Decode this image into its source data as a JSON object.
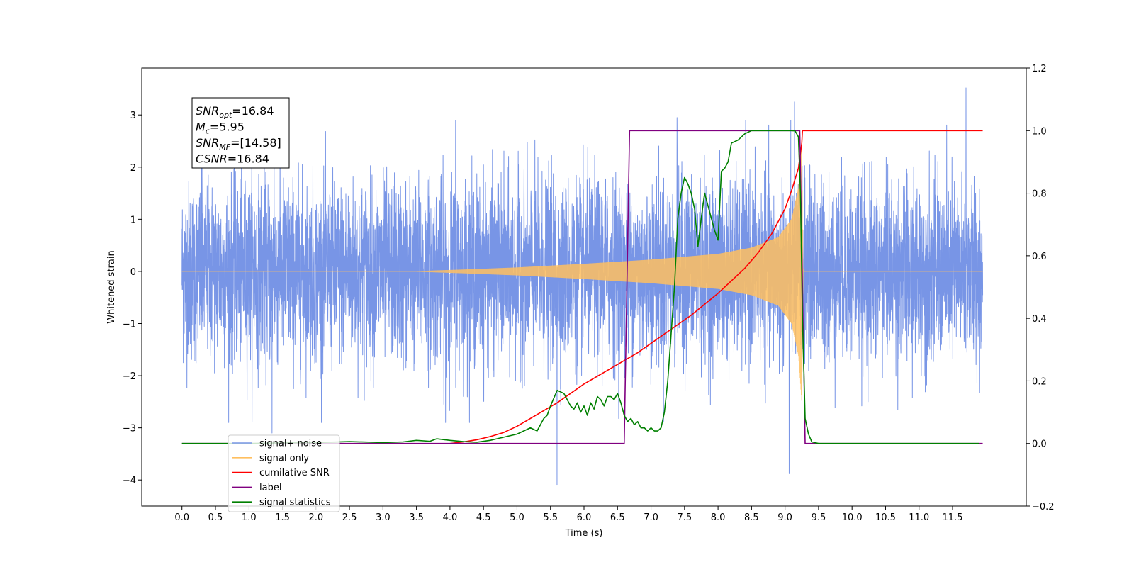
{
  "chart_data": {
    "type": "line",
    "xlabel": "Time (s)",
    "ylabel": "Whitened strain",
    "xlim": [
      -0.6,
      12.6
    ],
    "ylim": [
      -4.5,
      3.9
    ],
    "y2lim": [
      -0.2,
      1.2
    ],
    "x_ticks": [
      "0.0",
      "0.5",
      "1.0",
      "1.5",
      "2.0",
      "2.5",
      "3.0",
      "3.5",
      "4.0",
      "4.5",
      "5.0",
      "5.5",
      "6.0",
      "6.5",
      "7.0",
      "7.5",
      "8.0",
      "8.5",
      "9.0",
      "9.5",
      "10.0",
      "10.5",
      "11.0",
      "11.5"
    ],
    "x_tick_values": [
      0,
      0.5,
      1,
      1.5,
      2,
      2.5,
      3,
      3.5,
      4,
      4.5,
      5,
      5.5,
      6,
      6.5,
      7,
      7.5,
      8,
      8.5,
      9,
      9.5,
      10,
      10.5,
      11,
      11.5
    ],
    "y_ticks": [
      "3",
      "2",
      "1",
      "0",
      "−1",
      "−2",
      "−3",
      "−4"
    ],
    "y_tick_values": [
      3,
      2,
      1,
      0,
      -1,
      -2,
      -3,
      -4
    ],
    "y2_ticks": [
      "1.2",
      "1.0",
      "0.8",
      "0.6",
      "0.4",
      "0.2",
      "0.0",
      "−0.2"
    ],
    "y2_tick_values": [
      1.2,
      1.0,
      0.8,
      0.6,
      0.4,
      0.2,
      0.0,
      -0.2
    ],
    "duration": 12,
    "info_box": [
      {
        "base": "SNR",
        "sub": "opt",
        "value": "=16.84"
      },
      {
        "base": "M",
        "sub": "c",
        "value": "=5.95"
      },
      {
        "base": "SNR",
        "sub": "MF",
        "value": "=[14.58]"
      },
      {
        "base": "CSNR",
        "sub": "",
        "value": "=16.84"
      }
    ],
    "legend": {
      "placement": "lower-left",
      "entries": [
        {
          "label": "signal+ noise",
          "color": "#7895e6"
        },
        {
          "label": "signal only",
          "color": "#ffbf5f"
        },
        {
          "label": "cumilative SNR",
          "color": "#ff0000"
        },
        {
          "label": "label",
          "color": "#800080"
        },
        {
          "label": "signal statistics",
          "color": "#008000"
        }
      ]
    },
    "series": [
      {
        "name": "signal+ noise",
        "axis": "left",
        "color": "#7895e6",
        "kind": "noise",
        "sigma": 0.85,
        "spikes": [
          [
            1.35,
            -3.1
          ],
          [
            1.38,
            3.05
          ],
          [
            5.62,
            -4.1
          ],
          [
            9.1,
            -3.88
          ],
          [
            9.18,
            3.25
          ],
          [
            11.75,
            3.52
          ],
          [
            7.42,
            2.95
          ],
          [
            4.1,
            2.9
          ],
          [
            0.3,
            3.0
          ],
          [
            3.95,
            -2.9
          ]
        ]
      },
      {
        "name": "signal only",
        "axis": "left",
        "color": "#ffbf5f",
        "kind": "chirp",
        "tc": 9.25,
        "envelope": [
          [
            0,
            0.0
          ],
          [
            3.5,
            0.0
          ],
          [
            4.2,
            0.03
          ],
          [
            5.0,
            0.07
          ],
          [
            6.0,
            0.14
          ],
          [
            7.0,
            0.22
          ],
          [
            8.0,
            0.33
          ],
          [
            8.5,
            0.45
          ],
          [
            8.9,
            0.65
          ],
          [
            9.1,
            1.0
          ],
          [
            9.2,
            1.6
          ],
          [
            9.25,
            2.5
          ],
          [
            9.27,
            0.0
          ],
          [
            12,
            0.0
          ]
        ]
      },
      {
        "name": "cumilative SNR",
        "axis": "right",
        "color": "#ff0000",
        "x": [
          4.0,
          4.2,
          4.4,
          4.6,
          4.8,
          5.0,
          5.2,
          5.4,
          5.6,
          5.8,
          6.0,
          6.2,
          6.4,
          6.6,
          6.8,
          7.0,
          7.2,
          7.4,
          7.6,
          7.8,
          8.0,
          8.2,
          8.4,
          8.6,
          8.8,
          9.0,
          9.1,
          9.2,
          9.25,
          9.26,
          11.95
        ],
        "y": [
          0.0,
          0.005,
          0.012,
          0.022,
          0.035,
          0.055,
          0.08,
          0.105,
          0.13,
          0.16,
          0.19,
          0.215,
          0.24,
          0.265,
          0.29,
          0.32,
          0.35,
          0.38,
          0.41,
          0.445,
          0.48,
          0.52,
          0.56,
          0.61,
          0.67,
          0.75,
          0.81,
          0.88,
          0.96,
          1.0,
          1.0
        ]
      },
      {
        "name": "label",
        "axis": "right",
        "color": "#800080",
        "x": [
          0,
          6.6,
          6.68,
          9.22,
          9.3,
          11.95
        ],
        "y": [
          0,
          0,
          1,
          1,
          0,
          0
        ]
      },
      {
        "name": "signal statistics",
        "axis": "right",
        "color": "#008000",
        "x": [
          0,
          1.0,
          1.5,
          2.0,
          2.5,
          3.0,
          3.3,
          3.5,
          3.7,
          3.8,
          4.0,
          4.2,
          4.4,
          4.6,
          4.8,
          5.0,
          5.2,
          5.3,
          5.4,
          5.45,
          5.5,
          5.6,
          5.7,
          5.8,
          5.85,
          5.9,
          5.95,
          6.0,
          6.05,
          6.1,
          6.15,
          6.2,
          6.25,
          6.3,
          6.35,
          6.4,
          6.45,
          6.5,
          6.55,
          6.6,
          6.65,
          6.7,
          6.75,
          6.8,
          6.85,
          6.9,
          6.95,
          7.0,
          7.05,
          7.1,
          7.15,
          7.2,
          7.25,
          7.3,
          7.35,
          7.4,
          7.45,
          7.5,
          7.55,
          7.6,
          7.65,
          7.7,
          7.75,
          7.8,
          7.85,
          7.9,
          7.95,
          8.0,
          8.05,
          8.1,
          8.15,
          8.2,
          8.3,
          8.4,
          8.5,
          8.6,
          8.7,
          8.8,
          8.9,
          9.0,
          9.1,
          9.15,
          9.2,
          9.23,
          9.26,
          9.3,
          9.35,
          9.4,
          9.5,
          9.7,
          11.9
        ],
        "y": [
          0,
          0,
          0.002,
          0.003,
          0.006,
          0.003,
          0.005,
          0.01,
          0.007,
          0.015,
          0.01,
          0.006,
          0.004,
          0.01,
          0.02,
          0.03,
          0.05,
          0.04,
          0.08,
          0.09,
          0.12,
          0.17,
          0.16,
          0.12,
          0.11,
          0.13,
          0.1,
          0.12,
          0.09,
          0.13,
          0.11,
          0.15,
          0.14,
          0.12,
          0.15,
          0.15,
          0.14,
          0.16,
          0.13,
          0.09,
          0.07,
          0.08,
          0.06,
          0.07,
          0.05,
          0.05,
          0.04,
          0.05,
          0.04,
          0.04,
          0.05,
          0.1,
          0.2,
          0.35,
          0.5,
          0.72,
          0.8,
          0.85,
          0.83,
          0.8,
          0.75,
          0.63,
          0.72,
          0.8,
          0.76,
          0.72,
          0.68,
          0.65,
          0.87,
          0.88,
          0.9,
          0.96,
          0.97,
          0.99,
          1.0,
          1.0,
          1.0,
          1.0,
          1.0,
          1.0,
          1.0,
          0.999,
          0.98,
          0.8,
          0.4,
          0.08,
          0.03,
          0.005,
          0.0,
          0.0,
          0.0
        ]
      }
    ]
  }
}
